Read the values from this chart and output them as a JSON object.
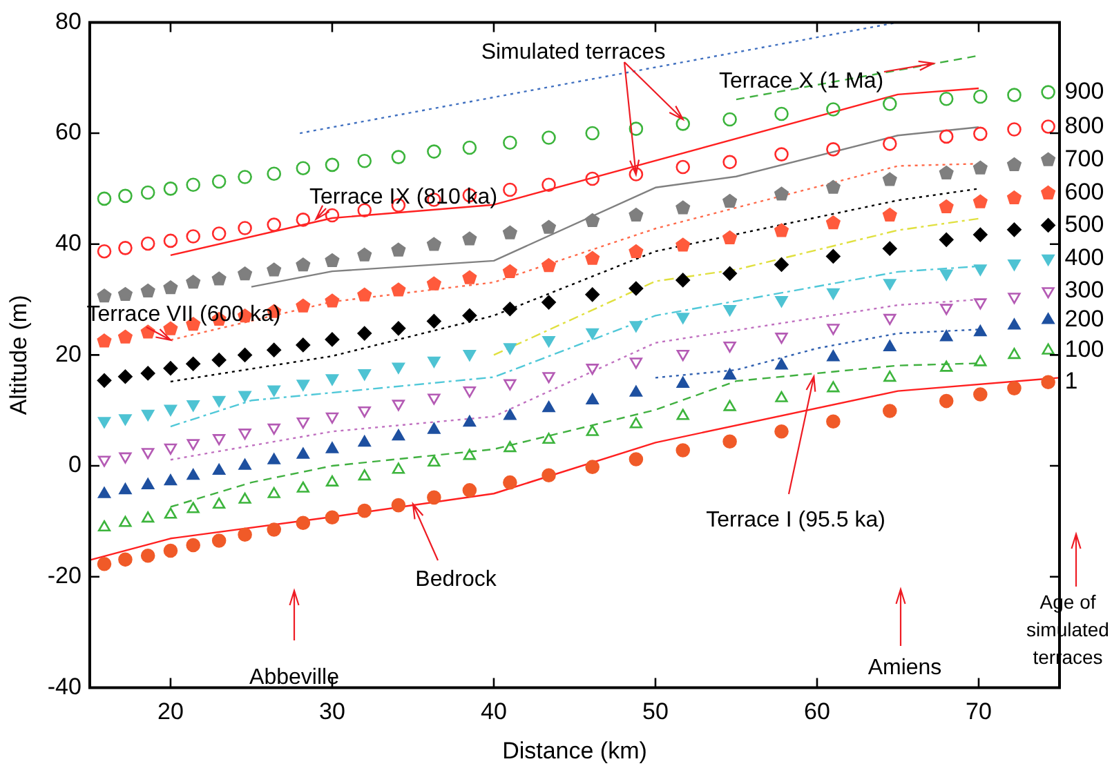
{
  "chart_data": {
    "type": "scatter",
    "xlabel": "Distance (km)",
    "ylabel": "Altitude (m)",
    "x": [
      15.9,
      17.2,
      18.6,
      20,
      21.4,
      23,
      24.6,
      26.4,
      28.2,
      30,
      32,
      34.1,
      36.3,
      38.5,
      41,
      43.4,
      46.1,
      48.8,
      51.7,
      54.6,
      57.8,
      61,
      64.5,
      68,
      70.1,
      72.2,
      74.3
    ],
    "xlim": [
      15,
      75
    ],
    "xticks": [
      20,
      30,
      40,
      50,
      60,
      70
    ],
    "ylim": [
      -40,
      80
    ],
    "yticks": [
      -40,
      -20,
      0,
      20,
      40,
      60,
      80
    ],
    "grid": false,
    "legend": false,
    "series": [
      {
        "type": "scatter",
        "marker": "circle-open",
        "color": "#3cb43c",
        "values": [
          48.2,
          48.7,
          49.3,
          50.0,
          50.7,
          51.3,
          52.1,
          52.7,
          53.7,
          54.3,
          55.0,
          55.7,
          56.7,
          57.4,
          58.3,
          59.2,
          60.0,
          60.8,
          61.7,
          62.5,
          63.5,
          64.3,
          65.3,
          66.2,
          66.6,
          66.9,
          67.4
        ]
      },
      {
        "type": "scatter",
        "marker": "circle-open",
        "color": "#ff2a2a",
        "values": [
          38.7,
          39.3,
          40.1,
          40.6,
          41.4,
          41.9,
          42.9,
          43.5,
          44.4,
          45.2,
          46.1,
          47.0,
          48.0,
          48.8,
          49.8,
          50.7,
          51.8,
          52.6,
          53.9,
          54.8,
          56.2,
          57.1,
          58.1,
          59.4,
          59.9,
          60.7,
          61.2
        ]
      },
      {
        "type": "scatter",
        "color": "#7f7f7f",
        "values": [
          30.6,
          30.9,
          31.5,
          32.1,
          33.1,
          33.7,
          34.6,
          35.3,
          36.2,
          37.0,
          38.0,
          38.9,
          39.9,
          40.9,
          42.0,
          43.0,
          44.2,
          45.2,
          46.5,
          47.7,
          49.0,
          50.2,
          51.6,
          52.8,
          53.7,
          54.3,
          55.2
        ]
      },
      {
        "type": "scatter",
        "color": "#ff5a3c",
        "values": [
          22.5,
          23.2,
          24.1,
          24.7,
          25.5,
          26.4,
          27.0,
          27.8,
          28.8,
          29.7,
          30.8,
          31.7,
          32.8,
          33.9,
          35.0,
          36.1,
          37.4,
          38.6,
          39.8,
          41.1,
          42.4,
          43.8,
          45.2,
          46.7,
          47.6,
          48.3,
          49.2
        ]
      },
      {
        "type": "scatter",
        "marker": "diamond",
        "color": "#000000",
        "values": [
          15.4,
          16.1,
          16.7,
          17.6,
          18.4,
          19.1,
          20.0,
          20.9,
          21.8,
          22.8,
          23.9,
          24.8,
          26.1,
          27.1,
          28.3,
          29.5,
          30.9,
          32.0,
          33.5,
          34.7,
          36.3,
          37.8,
          39.2,
          40.8,
          41.7,
          42.6,
          43.4
        ]
      },
      {
        "type": "scatter",
        "marker": "triangle-down",
        "color": "#4ec3d3",
        "values": [
          8.1,
          8.6,
          9.4,
          10.3,
          11.1,
          11.9,
          12.8,
          13.8,
          14.8,
          15.8,
          16.7,
          17.9,
          19.0,
          20.2,
          21.4,
          22.7,
          24.1,
          25.4,
          26.9,
          28.3,
          29.9,
          31.3,
          33.0,
          34.7,
          35.6,
          36.5,
          37.4
        ]
      },
      {
        "type": "scatter",
        "marker": "triangle-down-open",
        "color": "#b45ab4",
        "values": [
          1.1,
          1.7,
          2.5,
          3.3,
          4.1,
          5.0,
          6.0,
          6.9,
          8.0,
          8.9,
          10.0,
          11.2,
          12.3,
          13.6,
          14.9,
          16.2,
          17.7,
          18.8,
          20.2,
          21.7,
          23.3,
          24.9,
          26.7,
          28.5,
          29.5,
          30.5,
          31.5
        ]
      },
      {
        "type": "scatter",
        "marker": "triangle",
        "color": "#1e50a0",
        "values": [
          -5.1,
          -4.4,
          -3.5,
          -2.8,
          -1.8,
          -0.9,
          0,
          1.0,
          2.0,
          3.0,
          4.2,
          5.3,
          6.5,
          7.8,
          9.0,
          10.4,
          11.8,
          13.2,
          14.8,
          16.3,
          18.1,
          19.6,
          21.4,
          23.2,
          24.1,
          25.3,
          26.3
        ]
      },
      {
        "type": "scatter",
        "marker": "triangle-open",
        "color": "#3cb43c",
        "values": [
          -11.1,
          -10.3,
          -9.5,
          -8.8,
          -7.8,
          -7.0,
          -6.1,
          -5.1,
          -4.1,
          -3.0,
          -1.9,
          -0.7,
          0.6,
          1.8,
          3.2,
          4.7,
          6.1,
          7.5,
          9.0,
          10.6,
          12.2,
          14.0,
          15.9,
          17.7,
          18.7,
          20.0,
          20.8
        ]
      },
      {
        "type": "scatter",
        "marker": "circle",
        "color": "#f05a28",
        "values": [
          -17.7,
          -16.9,
          -16.2,
          -15.3,
          -14.3,
          -13.5,
          -12.4,
          -11.5,
          -10.3,
          -9.3,
          -8.1,
          -7.1,
          -5.7,
          -4.4,
          -3.0,
          -1.7,
          -0.2,
          1.2,
          2.8,
          4.4,
          6.2,
          8.0,
          9.9,
          11.7,
          12.9,
          14.0,
          15.1
        ]
      },
      {
        "type": "line",
        "line_style": "dotted",
        "color": "#4070c0",
        "x": [
          28,
          65
        ],
        "values": [
          60,
          80
        ]
      },
      {
        "type": "line",
        "line_style": "dashed",
        "color": "#40b040",
        "x": [
          55,
          70
        ],
        "values": [
          66.1,
          74.0
        ]
      },
      {
        "type": "line",
        "line_style": "solid",
        "color": "#ff2020",
        "x": [
          20,
          30,
          40,
          65,
          70
        ],
        "values": [
          38.0,
          44.7,
          47.1,
          67.0,
          68.1
        ]
      },
      {
        "type": "line",
        "line_style": "solid",
        "color": "#808080",
        "x": [
          25,
          30,
          40,
          50,
          55,
          65,
          70
        ],
        "values": [
          32.3,
          35.1,
          37.0,
          50.2,
          52.2,
          59.6,
          61.1
        ]
      },
      {
        "type": "line",
        "line_style": "dotted",
        "color": "#ff6a4a",
        "x": [
          20,
          30,
          40,
          50,
          65,
          70
        ],
        "values": [
          22.7,
          29.6,
          33.1,
          42.8,
          54.1,
          54.5
        ]
      },
      {
        "type": "line",
        "line_style": "dotted",
        "color": "#000000",
        "x": [
          20,
          30,
          40,
          50,
          65,
          70
        ],
        "values": [
          15.2,
          19.8,
          27.1,
          38.7,
          47.9,
          50.0
        ]
      },
      {
        "type": "line",
        "line_style": "dashdot",
        "color": "#e0e040",
        "x": [
          40,
          50,
          55,
          65,
          70
        ],
        "values": [
          20.0,
          33.3,
          35.4,
          42.5,
          44.6
        ]
      },
      {
        "type": "line",
        "line_style": "dashdot",
        "color": "#50c8d8",
        "x": [
          20,
          25,
          40,
          50,
          65,
          70
        ],
        "values": [
          7.1,
          11.8,
          16.0,
          27.1,
          35.0,
          36.0
        ]
      },
      {
        "type": "line",
        "line_style": "dotted",
        "color": "#c070c0",
        "x": [
          20,
          30,
          40,
          50,
          65,
          70
        ],
        "values": [
          1.1,
          6.2,
          8.9,
          22.2,
          29.0,
          30.0
        ]
      },
      {
        "type": "line",
        "line_style": "dotted",
        "color": "#3060b0",
        "x": [
          50,
          55,
          60,
          65,
          70
        ],
        "values": [
          15.9,
          17.3,
          21.2,
          23.9,
          24.6
        ]
      },
      {
        "type": "line",
        "line_style": "dashed",
        "color": "#40b040",
        "x": [
          20,
          25,
          30,
          40,
          50,
          55,
          65,
          70
        ],
        "values": [
          -7.4,
          -3.0,
          0,
          3.0,
          10.1,
          15.3,
          18.1,
          18.5
        ]
      },
      {
        "type": "line",
        "line_style": "solid",
        "color": "#ff2020",
        "x": [
          15,
          20,
          30,
          40,
          50,
          65,
          75
        ],
        "values": [
          -17.0,
          -13.1,
          -9.2,
          -5.0,
          4.2,
          13.5,
          15.9
        ]
      }
    ],
    "annotations": [
      {
        "text": "Simulated terraces",
        "x": 51.7,
        "y": 62.5
      },
      {
        "text": "Terrace X (1 Ma)",
        "x": 67.2,
        "y": 72.6
      },
      {
        "text": "Terrace IX (810 ka)",
        "x": 29,
        "y": 44.5
      },
      {
        "text": "Terrace VII (600 ka)",
        "x": 20,
        "y": 22.7
      },
      {
        "text": "Terrace I (95.5 ka)",
        "x": 59.8,
        "y": 16.1
      },
      {
        "text": "Bedrock",
        "x": 35,
        "y": -6.9
      },
      "Abbeville",
      "Amiens",
      "Age of simulated terraces",
      {
        "text": "900",
        "x": 74.3,
        "y": 67.4
      },
      {
        "text": "800",
        "x": 74.3,
        "y": 61.2
      },
      {
        "text": "700",
        "x": 74.3,
        "y": 55.2
      },
      {
        "text": "600",
        "x": 74.3,
        "y": 49.2
      },
      {
        "text": "500",
        "x": 74.3,
        "y": 43.4
      },
      {
        "text": "400",
        "x": 74.3,
        "y": 37.4
      },
      {
        "text": "300",
        "x": 74.3,
        "y": 31.5
      },
      {
        "text": "200",
        "x": 74.3,
        "y": 26.3
      },
      {
        "text": "100",
        "x": 74.3,
        "y": 20.8
      },
      {
        "text": "1",
        "x": 74.3,
        "y": 15.1
      }
    ]
  }
}
